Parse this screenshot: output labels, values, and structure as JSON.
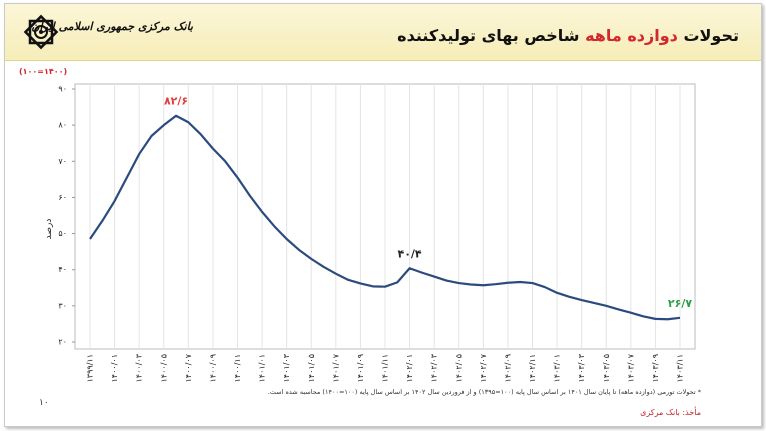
{
  "header": {
    "bank": "بانک مرکزی جمهوری اسلامی ایران",
    "title_start": "تحولات",
    "title_highlight": "دوازده ماهه",
    "title_end": "شاخص بهای تولیدکننده"
  },
  "chart_data": {
    "type": "line",
    "unit": "(۱۰۰=۱۴۰۰)",
    "ylabel": "درصد",
    "categories": [
      "۱۳۹۹/۱۱",
      null,
      "۱۴۰۰/۰۱",
      null,
      "۱۴۰۰/۰۳",
      null,
      "۱۴۰۰/۰۵",
      null,
      "۱۴۰۰/۰۷",
      null,
      "۱۴۰۰/۰۹",
      null,
      "۱۴۰۰/۱۱",
      null,
      "۱۴۰۱/۰۱",
      null,
      "۱۴۰۱/۰۳",
      null,
      "۱۴۰۱/۰۵",
      null,
      "۱۴۰۱/۰۷",
      null,
      "۱۴۰۱/۰۹",
      null,
      "۱۴۰۱/۱۱",
      null,
      "۱۴۰۲/۰۱",
      null,
      "۱۴۰۲/۰۳",
      null,
      "۱۴۰۲/۰۵",
      null,
      "۱۴۰۲/۰۷",
      null,
      "۱۴۰۲/۰۹",
      null,
      "۱۴۰۲/۱۱",
      null,
      "۱۴۰۳/۰۱",
      null,
      "۱۴۰۳/۰۳",
      null,
      "۱۴۰۳/۰۵",
      null,
      "۱۴۰۳/۰۷",
      null,
      "۱۴۰۳/۰۹",
      null,
      "۱۴۰۳/۱۱"
    ],
    "values": [
      48.5,
      53.5,
      59,
      65.5,
      72,
      77,
      80,
      82.6,
      80.8,
      77.5,
      73.5,
      70,
      65.5,
      60.5,
      56,
      52,
      48.5,
      45.5,
      43,
      40.8,
      38.9,
      37.2,
      36.2,
      35.4,
      35.3,
      36.5,
      40.4,
      39.2,
      38.1,
      37,
      36.3,
      35.9,
      35.7,
      36,
      36.4,
      36.6,
      36.3,
      35.2,
      33.6,
      32.5,
      31.6,
      30.8,
      30,
      29,
      28.1,
      27.1,
      26.4,
      26.3,
      26.7
    ],
    "value_labels": [
      null,
      null,
      null,
      null,
      null,
      null,
      null,
      "۸۲/۶",
      null,
      null,
      null,
      null,
      null,
      null,
      null,
      null,
      null,
      null,
      null,
      null,
      null,
      null,
      null,
      null,
      null,
      null,
      "۴۰/۴",
      null,
      null,
      null,
      null,
      null,
      null,
      null,
      null,
      null,
      null,
      null,
      null,
      null,
      null,
      null,
      null,
      null,
      null,
      null,
      null,
      null,
      "۲۶/۷"
    ],
    "value_label_colors": [
      null,
      null,
      null,
      null,
      null,
      null,
      null,
      "#e23b3b",
      null,
      null,
      null,
      null,
      null,
      null,
      null,
      null,
      null,
      null,
      null,
      null,
      null,
      null,
      null,
      null,
      null,
      null,
      "#222222",
      null,
      null,
      null,
      null,
      null,
      null,
      null,
      null,
      null,
      null,
      null,
      null,
      null,
      null,
      null,
      null,
      null,
      null,
      null,
      null,
      null,
      "#2e9e4a"
    ],
    "color": "#2b4b7e",
    "ylim": [
      20,
      90
    ],
    "yticks": [
      {
        "value": 20,
        "label": "۲۰"
      },
      {
        "value": 30,
        "label": "۳۰"
      },
      {
        "value": 40,
        "label": "۴۰"
      },
      {
        "value": 50,
        "label": "۵۰"
      },
      {
        "value": 60,
        "label": "۶۰"
      },
      {
        "value": 70,
        "label": "۷۰"
      },
      {
        "value": 80,
        "label": "۸۰"
      },
      {
        "value": 90,
        "label": "۹۰"
      }
    ],
    "grid": false,
    "footnote": "* تحولات تورمی (دوازده ماهه) تا پایان سال ۱۴۰۱ بر اساس سال پایه (۱۰۰=۱۳۹۵) و از فروردین سال ۱۴۰۲ بر اساس سال پایه (۱۰۰=۱۴۰۰) محاسبه شده است.",
    "source": "مأخذ: بانک مرکزی",
    "page": "۱۰"
  }
}
